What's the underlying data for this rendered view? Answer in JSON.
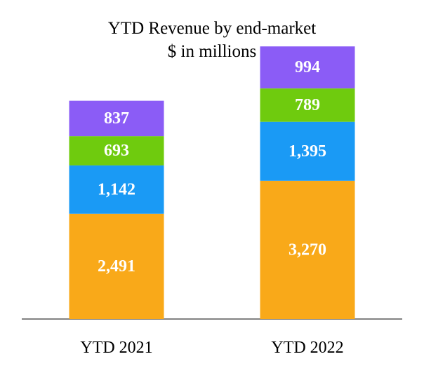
{
  "chart_data": {
    "type": "bar",
    "stacked": true,
    "title": "YTD Revenue by end-market",
    "subtitle": "$ in millions",
    "categories": [
      "YTD 2021",
      "YTD 2022"
    ],
    "series": [
      {
        "values": [
          2491,
          3270
        ],
        "color": "#F9A919"
      },
      {
        "values": [
          1142,
          1395
        ],
        "color": "#1A9AF5"
      },
      {
        "values": [
          693,
          789
        ],
        "color": "#6FCB0E"
      },
      {
        "values": [
          837,
          994
        ],
        "color": "#8B5CF6"
      }
    ],
    "data_labels": [
      [
        "2,491",
        "3,270"
      ],
      [
        "1,142",
        "1,395"
      ],
      [
        "693",
        "789"
      ],
      [
        "837",
        "994"
      ]
    ],
    "axis_line_color": "#595959",
    "grid": false,
    "legend": "none"
  }
}
